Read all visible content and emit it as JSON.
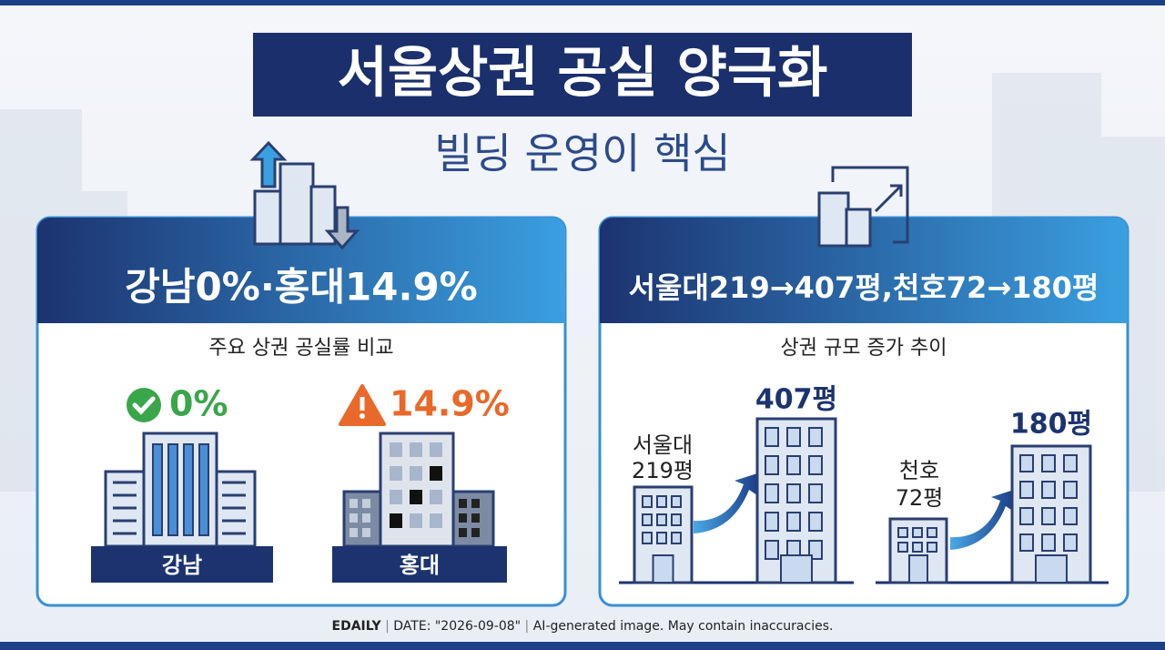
{
  "header": {
    "title": "서울상권 공실 양극화",
    "subtitle": "빌딩 운영이 핵심"
  },
  "left_panel": {
    "heading": "강남0%·홍대14.9%",
    "caption": "주요 상권 공실률 비교",
    "items": [
      {
        "stat": "0%",
        "label": "강남"
      },
      {
        "stat": "14.9%",
        "label": "홍대"
      }
    ]
  },
  "right_panel": {
    "heading": "서울대219→407평,천호72→180평",
    "caption": "상권 규모 증가 추이",
    "groups": [
      {
        "name": "서울대",
        "before": "219평",
        "after": "407평"
      },
      {
        "name": "천호",
        "before": "72평",
        "after": "180평"
      }
    ]
  },
  "footer": {
    "source": "EDAILY",
    "date": "DATE: \"2026-09-08\"",
    "note": "AI-generated image. May contain inaccuracies."
  }
}
